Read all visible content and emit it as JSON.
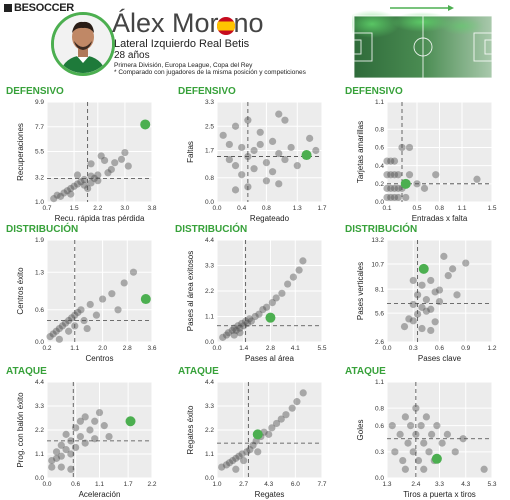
{
  "header": {
    "logo_text": "BESOCCER",
    "player_name": "Álex Moreno",
    "position_team": "Lateral Izquierdo Real Betis",
    "age": "28 años",
    "competitions": "Primera División, Europa League, Copa del Rey",
    "comparison_note": "* Comparado con jugadores de la misma posición y competiciones",
    "flag": "spain-flag-icon"
  },
  "colors": {
    "accent": "#4caf50",
    "section": "#37a13a",
    "dots": "#555555",
    "panel": "#ececec"
  },
  "chart_data": [
    {
      "type": "scatter",
      "section": "DEFENSIVO",
      "xlabel": "Recu. rápida tras pérdida",
      "ylabel": "Recuperaciones",
      "xticks": [
        "0.7",
        "1.5",
        "2.2",
        "3.0",
        "3.8"
      ],
      "yticks": [
        "1.0",
        "3.2",
        "5.5",
        "7.7",
        "9.9"
      ],
      "xlim": [
        0.7,
        3.8
      ],
      "ylim": [
        1.0,
        9.9
      ],
      "ref": [
        1.9,
        3.1
      ],
      "others": [
        [
          0.9,
          1.3
        ],
        [
          1.0,
          1.6
        ],
        [
          1.1,
          1.5
        ],
        [
          1.2,
          1.8
        ],
        [
          1.3,
          2.0
        ],
        [
          1.4,
          2.2
        ],
        [
          1.4,
          1.7
        ],
        [
          1.5,
          2.4
        ],
        [
          1.6,
          2.6
        ],
        [
          1.7,
          2.8
        ],
        [
          1.8,
          3.0
        ],
        [
          1.8,
          2.5
        ],
        [
          1.9,
          2.2
        ],
        [
          2.0,
          3.3
        ],
        [
          2.0,
          2.7
        ],
        [
          2.1,
          3.1
        ],
        [
          2.2,
          3.4
        ],
        [
          2.2,
          2.9
        ],
        [
          2.3,
          5.1
        ],
        [
          2.4,
          4.7
        ],
        [
          2.5,
          3.6
        ],
        [
          2.6,
          3.9
        ],
        [
          2.7,
          4.5
        ],
        [
          2.9,
          4.8
        ],
        [
          3.0,
          5.4
        ],
        [
          3.1,
          4.2
        ],
        [
          2.0,
          4.4
        ],
        [
          1.6,
          3.4
        ]
      ],
      "player": [
        3.6,
        7.9
      ]
    },
    {
      "type": "scatter",
      "section": "DEFENSIVO",
      "xlabel": "Regateado",
      "ylabel": "Faltas",
      "xticks": [
        "0.0",
        "0.4",
        "0.8",
        "1.3",
        "1.7"
      ],
      "yticks": [
        "0.0",
        "0.8",
        "1.7",
        "2.5",
        "3.3"
      ],
      "xlim": [
        0.0,
        1.7
      ],
      "ylim": [
        0.0,
        3.3
      ],
      "ref": [
        0.5,
        1.5
      ],
      "others": [
        [
          0.1,
          2.2
        ],
        [
          0.2,
          1.9
        ],
        [
          0.2,
          1.4
        ],
        [
          0.3,
          2.5
        ],
        [
          0.3,
          1.2
        ],
        [
          0.4,
          1.8
        ],
        [
          0.4,
          0.9
        ],
        [
          0.5,
          2.7
        ],
        [
          0.5,
          1.5
        ],
        [
          0.5,
          0.5
        ],
        [
          0.6,
          1.7
        ],
        [
          0.6,
          1.1
        ],
        [
          0.7,
          2.3
        ],
        [
          0.7,
          1.9
        ],
        [
          0.8,
          1.3
        ],
        [
          0.8,
          0.7
        ],
        [
          0.9,
          2.0
        ],
        [
          0.9,
          1.0
        ],
        [
          1.0,
          2.9
        ],
        [
          1.0,
          1.6
        ],
        [
          1.1,
          2.7
        ],
        [
          1.1,
          1.4
        ],
        [
          1.2,
          1.8
        ],
        [
          1.3,
          1.2
        ],
        [
          1.5,
          2.1
        ],
        [
          1.6,
          1.7
        ],
        [
          0.3,
          0.4
        ],
        [
          1.0,
          0.6
        ]
      ],
      "player": [
        1.45,
        1.55
      ]
    },
    {
      "type": "scatter",
      "section": "DEFENSIVO",
      "xlabel": "Entradas x falta",
      "ylabel": "Tarjetas amarillas",
      "xticks": [
        "0.1",
        "0.5",
        "0.8",
        "1.1",
        "1.5"
      ],
      "yticks": [
        "0.0",
        "0.2",
        "0.4",
        "0.6",
        "0.8",
        "1.1"
      ],
      "xlim": [
        0.1,
        1.5
      ],
      "ylim": [
        0.0,
        1.1
      ],
      "ref": [
        0.3,
        0.2
      ],
      "others": [
        [
          0.1,
          0.45
        ],
        [
          0.15,
          0.45
        ],
        [
          0.2,
          0.45
        ],
        [
          0.1,
          0.3
        ],
        [
          0.15,
          0.3
        ],
        [
          0.2,
          0.3
        ],
        [
          0.25,
          0.3
        ],
        [
          0.1,
          0.15
        ],
        [
          0.15,
          0.15
        ],
        [
          0.2,
          0.15
        ],
        [
          0.25,
          0.15
        ],
        [
          0.3,
          0.15
        ],
        [
          0.1,
          0.05
        ],
        [
          0.15,
          0.05
        ],
        [
          0.2,
          0.05
        ],
        [
          0.25,
          0.05
        ],
        [
          0.35,
          0.05
        ],
        [
          0.3,
          0.6
        ],
        [
          0.4,
          0.3
        ],
        [
          0.5,
          0.2
        ],
        [
          0.6,
          0.15
        ],
        [
          0.75,
          0.3
        ],
        [
          1.3,
          0.25
        ],
        [
          0.4,
          0.6
        ]
      ],
      "player": [
        0.35,
        0.2
      ]
    },
    {
      "type": "scatter",
      "section": "DISTRIBUCIÓN",
      "xlabel": "Centros",
      "ylabel": "Centros éxito",
      "xticks": [
        "0.2",
        "1.1",
        "2.0",
        "2.8",
        "3.6"
      ],
      "yticks": [
        "0.0",
        "0.6",
        "1.3",
        "1.9"
      ],
      "xlim": [
        0.2,
        3.6
      ],
      "ylim": [
        0.0,
        1.9
      ],
      "ref": [
        1.1,
        0.4
      ],
      "others": [
        [
          0.3,
          0.1
        ],
        [
          0.4,
          0.15
        ],
        [
          0.5,
          0.2
        ],
        [
          0.6,
          0.25
        ],
        [
          0.7,
          0.3
        ],
        [
          0.8,
          0.35
        ],
        [
          0.9,
          0.4
        ],
        [
          0.9,
          0.2
        ],
        [
          1.0,
          0.45
        ],
        [
          1.1,
          0.5
        ],
        [
          1.1,
          0.3
        ],
        [
          1.2,
          0.55
        ],
        [
          1.3,
          0.6
        ],
        [
          1.4,
          0.4
        ],
        [
          1.6,
          0.7
        ],
        [
          1.8,
          0.5
        ],
        [
          2.0,
          0.8
        ],
        [
          2.3,
          0.9
        ],
        [
          2.5,
          0.6
        ],
        [
          2.7,
          1.1
        ],
        [
          3.0,
          1.3
        ],
        [
          0.6,
          0.05
        ],
        [
          1.5,
          0.25
        ]
      ],
      "player": [
        3.4,
        0.8
      ]
    },
    {
      "type": "scatter",
      "section": "DISTRIBUCIÓN",
      "xlabel": "Pases al área",
      "ylabel": "Pases al área exitosos",
      "xticks": [
        "0.0",
        "1.4",
        "2.8",
        "4.1",
        "5.5"
      ],
      "yticks": [
        "0.0",
        "1.1",
        "2.2",
        "3.3",
        "4.4"
      ],
      "xlim": [
        0.0,
        5.5
      ],
      "ylim": [
        0.0,
        4.4
      ],
      "ref": [
        1.5,
        0.7
      ],
      "others": [
        [
          0.3,
          0.2
        ],
        [
          0.5,
          0.3
        ],
        [
          0.6,
          0.4
        ],
        [
          0.8,
          0.5
        ],
        [
          0.9,
          0.6
        ],
        [
          1.0,
          0.5
        ],
        [
          1.1,
          0.7
        ],
        [
          1.2,
          0.6
        ],
        [
          1.3,
          0.8
        ],
        [
          1.4,
          0.7
        ],
        [
          1.5,
          0.9
        ],
        [
          1.6,
          0.8
        ],
        [
          1.7,
          1.0
        ],
        [
          1.8,
          0.9
        ],
        [
          2.0,
          1.1
        ],
        [
          2.2,
          1.2
        ],
        [
          2.4,
          1.4
        ],
        [
          2.6,
          1.5
        ],
        [
          2.9,
          1.7
        ],
        [
          3.1,
          1.9
        ],
        [
          3.4,
          2.1
        ],
        [
          3.7,
          2.5
        ],
        [
          4.0,
          2.8
        ],
        [
          4.3,
          3.1
        ],
        [
          4.5,
          3.5
        ],
        [
          0.9,
          0.3
        ],
        [
          1.2,
          0.4
        ]
      ],
      "player": [
        2.8,
        1.05
      ]
    },
    {
      "type": "scatter",
      "section": "DISTRIBUCIÓN",
      "xlabel": "Pases clave",
      "ylabel": "Pases verticales",
      "xticks": [
        "0.0",
        "0.3",
        "0.6",
        "0.9",
        "1.2"
      ],
      "yticks": [
        "2.6",
        "5.6",
        "8.1",
        "10.7",
        "13.2"
      ],
      "xlim": [
        0.0,
        1.2
      ],
      "ylim": [
        2.6,
        13.2
      ],
      "ref": [
        0.35,
        6.6
      ],
      "others": [
        [
          0.2,
          4.2
        ],
        [
          0.25,
          5.0
        ],
        [
          0.3,
          6.5
        ],
        [
          0.3,
          4.8
        ],
        [
          0.35,
          7.5
        ],
        [
          0.35,
          5.5
        ],
        [
          0.4,
          8.5
        ],
        [
          0.4,
          6.2
        ],
        [
          0.45,
          7.0
        ],
        [
          0.45,
          5.8
        ],
        [
          0.5,
          9.0
        ],
        [
          0.5,
          6.0
        ],
        [
          0.55,
          7.8
        ],
        [
          0.55,
          4.7
        ],
        [
          0.6,
          8.0
        ],
        [
          0.6,
          6.8
        ],
        [
          0.65,
          11.5
        ],
        [
          0.7,
          9.5
        ],
        [
          0.75,
          10.2
        ],
        [
          0.8,
          7.5
        ],
        [
          0.9,
          10.8
        ],
        [
          0.3,
          9.0
        ],
        [
          0.4,
          4.0
        ],
        [
          0.5,
          3.8
        ]
      ],
      "player": [
        0.42,
        10.2
      ]
    },
    {
      "type": "scatter",
      "section": "ATAQUE",
      "xlabel": "Aceleración",
      "ylabel": "Prog. con balón éxito",
      "xticks": [
        "0.0",
        "0.6",
        "1.1",
        "1.7",
        "2.2"
      ],
      "yticks": [
        "0.0",
        "1.1",
        "2.2",
        "3.3",
        "4.4"
      ],
      "xlim": [
        0.0,
        2.2
      ],
      "ylim": [
        0.0,
        4.4
      ],
      "ref": [
        0.55,
        1.7
      ],
      "others": [
        [
          0.1,
          0.8
        ],
        [
          0.2,
          1.2
        ],
        [
          0.2,
          0.9
        ],
        [
          0.3,
          1.5
        ],
        [
          0.3,
          1.0
        ],
        [
          0.4,
          1.3
        ],
        [
          0.4,
          2.0
        ],
        [
          0.5,
          1.7
        ],
        [
          0.5,
          1.1
        ],
        [
          0.6,
          2.3
        ],
        [
          0.6,
          1.4
        ],
        [
          0.7,
          1.9
        ],
        [
          0.8,
          2.8
        ],
        [
          0.8,
          1.6
        ],
        [
          0.9,
          2.2
        ],
        [
          1.0,
          2.6
        ],
        [
          1.0,
          1.8
        ],
        [
          1.1,
          3.0
        ],
        [
          1.2,
          2.4
        ],
        [
          1.3,
          1.9
        ],
        [
          0.7,
          2.6
        ],
        [
          0.5,
          0.4
        ],
        [
          0.3,
          0.5
        ],
        [
          0.1,
          0.5
        ]
      ],
      "player": [
        1.75,
        2.6
      ]
    },
    {
      "type": "scatter",
      "section": "ATAQUE",
      "xlabel": "Regates",
      "ylabel": "Regates éxito",
      "xticks": [
        "1.0",
        "2.7",
        "4.3",
        "6.0",
        "7.7"
      ],
      "yticks": [
        "0.0",
        "1.1",
        "2.2",
        "3.3",
        "4.4"
      ],
      "xlim": [
        1.0,
        7.7
      ],
      "ylim": [
        0.0,
        4.4
      ],
      "ref": [
        3.0,
        1.6
      ],
      "others": [
        [
          1.3,
          0.5
        ],
        [
          1.6,
          0.6
        ],
        [
          1.8,
          0.7
        ],
        [
          2.0,
          0.8
        ],
        [
          2.2,
          0.9
        ],
        [
          2.4,
          1.0
        ],
        [
          2.6,
          1.1
        ],
        [
          2.7,
          0.8
        ],
        [
          2.9,
          1.2
        ],
        [
          3.1,
          1.3
        ],
        [
          3.3,
          1.5
        ],
        [
          3.5,
          1.7
        ],
        [
          3.8,
          1.9
        ],
        [
          4.0,
          2.1
        ],
        [
          4.3,
          2.0
        ],
        [
          4.5,
          2.3
        ],
        [
          4.8,
          2.5
        ],
        [
          5.1,
          2.7
        ],
        [
          5.4,
          2.9
        ],
        [
          5.8,
          3.2
        ],
        [
          6.1,
          3.5
        ],
        [
          6.5,
          3.9
        ],
        [
          2.2,
          0.4
        ],
        [
          3.6,
          1.2
        ]
      ],
      "player": [
        3.6,
        2.0
      ]
    },
    {
      "type": "scatter",
      "section": "ATAQUE",
      "xlabel": "Tiros a puerta x tiros",
      "ylabel": "Goles",
      "xticks": [
        "1.3",
        "2.4",
        "3.3",
        "4.3",
        "5.3"
      ],
      "yticks": [
        "0.0",
        "0.3",
        "0.6",
        "0.8",
        "1.1"
      ],
      "xlim": [
        1.3,
        5.3
      ],
      "ylim": [
        0.0,
        1.1
      ],
      "ref": [
        2.4,
        0.45
      ],
      "others": [
        [
          1.5,
          0.6
        ],
        [
          1.6,
          0.3
        ],
        [
          1.8,
          0.5
        ],
        [
          1.9,
          0.2
        ],
        [
          2.0,
          0.7
        ],
        [
          2.1,
          0.4
        ],
        [
          2.2,
          0.6
        ],
        [
          2.3,
          0.3
        ],
        [
          2.4,
          0.8
        ],
        [
          2.4,
          0.5
        ],
        [
          2.5,
          0.2
        ],
        [
          2.6,
          0.6
        ],
        [
          2.7,
          0.4
        ],
        [
          2.8,
          0.7
        ],
        [
          2.9,
          0.3
        ],
        [
          3.0,
          0.5
        ],
        [
          3.1,
          0.2
        ],
        [
          3.2,
          0.6
        ],
        [
          3.4,
          0.4
        ],
        [
          3.6,
          0.5
        ],
        [
          3.9,
          0.3
        ],
        [
          4.2,
          0.45
        ],
        [
          2.0,
          0.1
        ],
        [
          2.7,
          0.1
        ],
        [
          5.0,
          0.1
        ]
      ],
      "player": [
        3.2,
        0.22
      ]
    }
  ]
}
